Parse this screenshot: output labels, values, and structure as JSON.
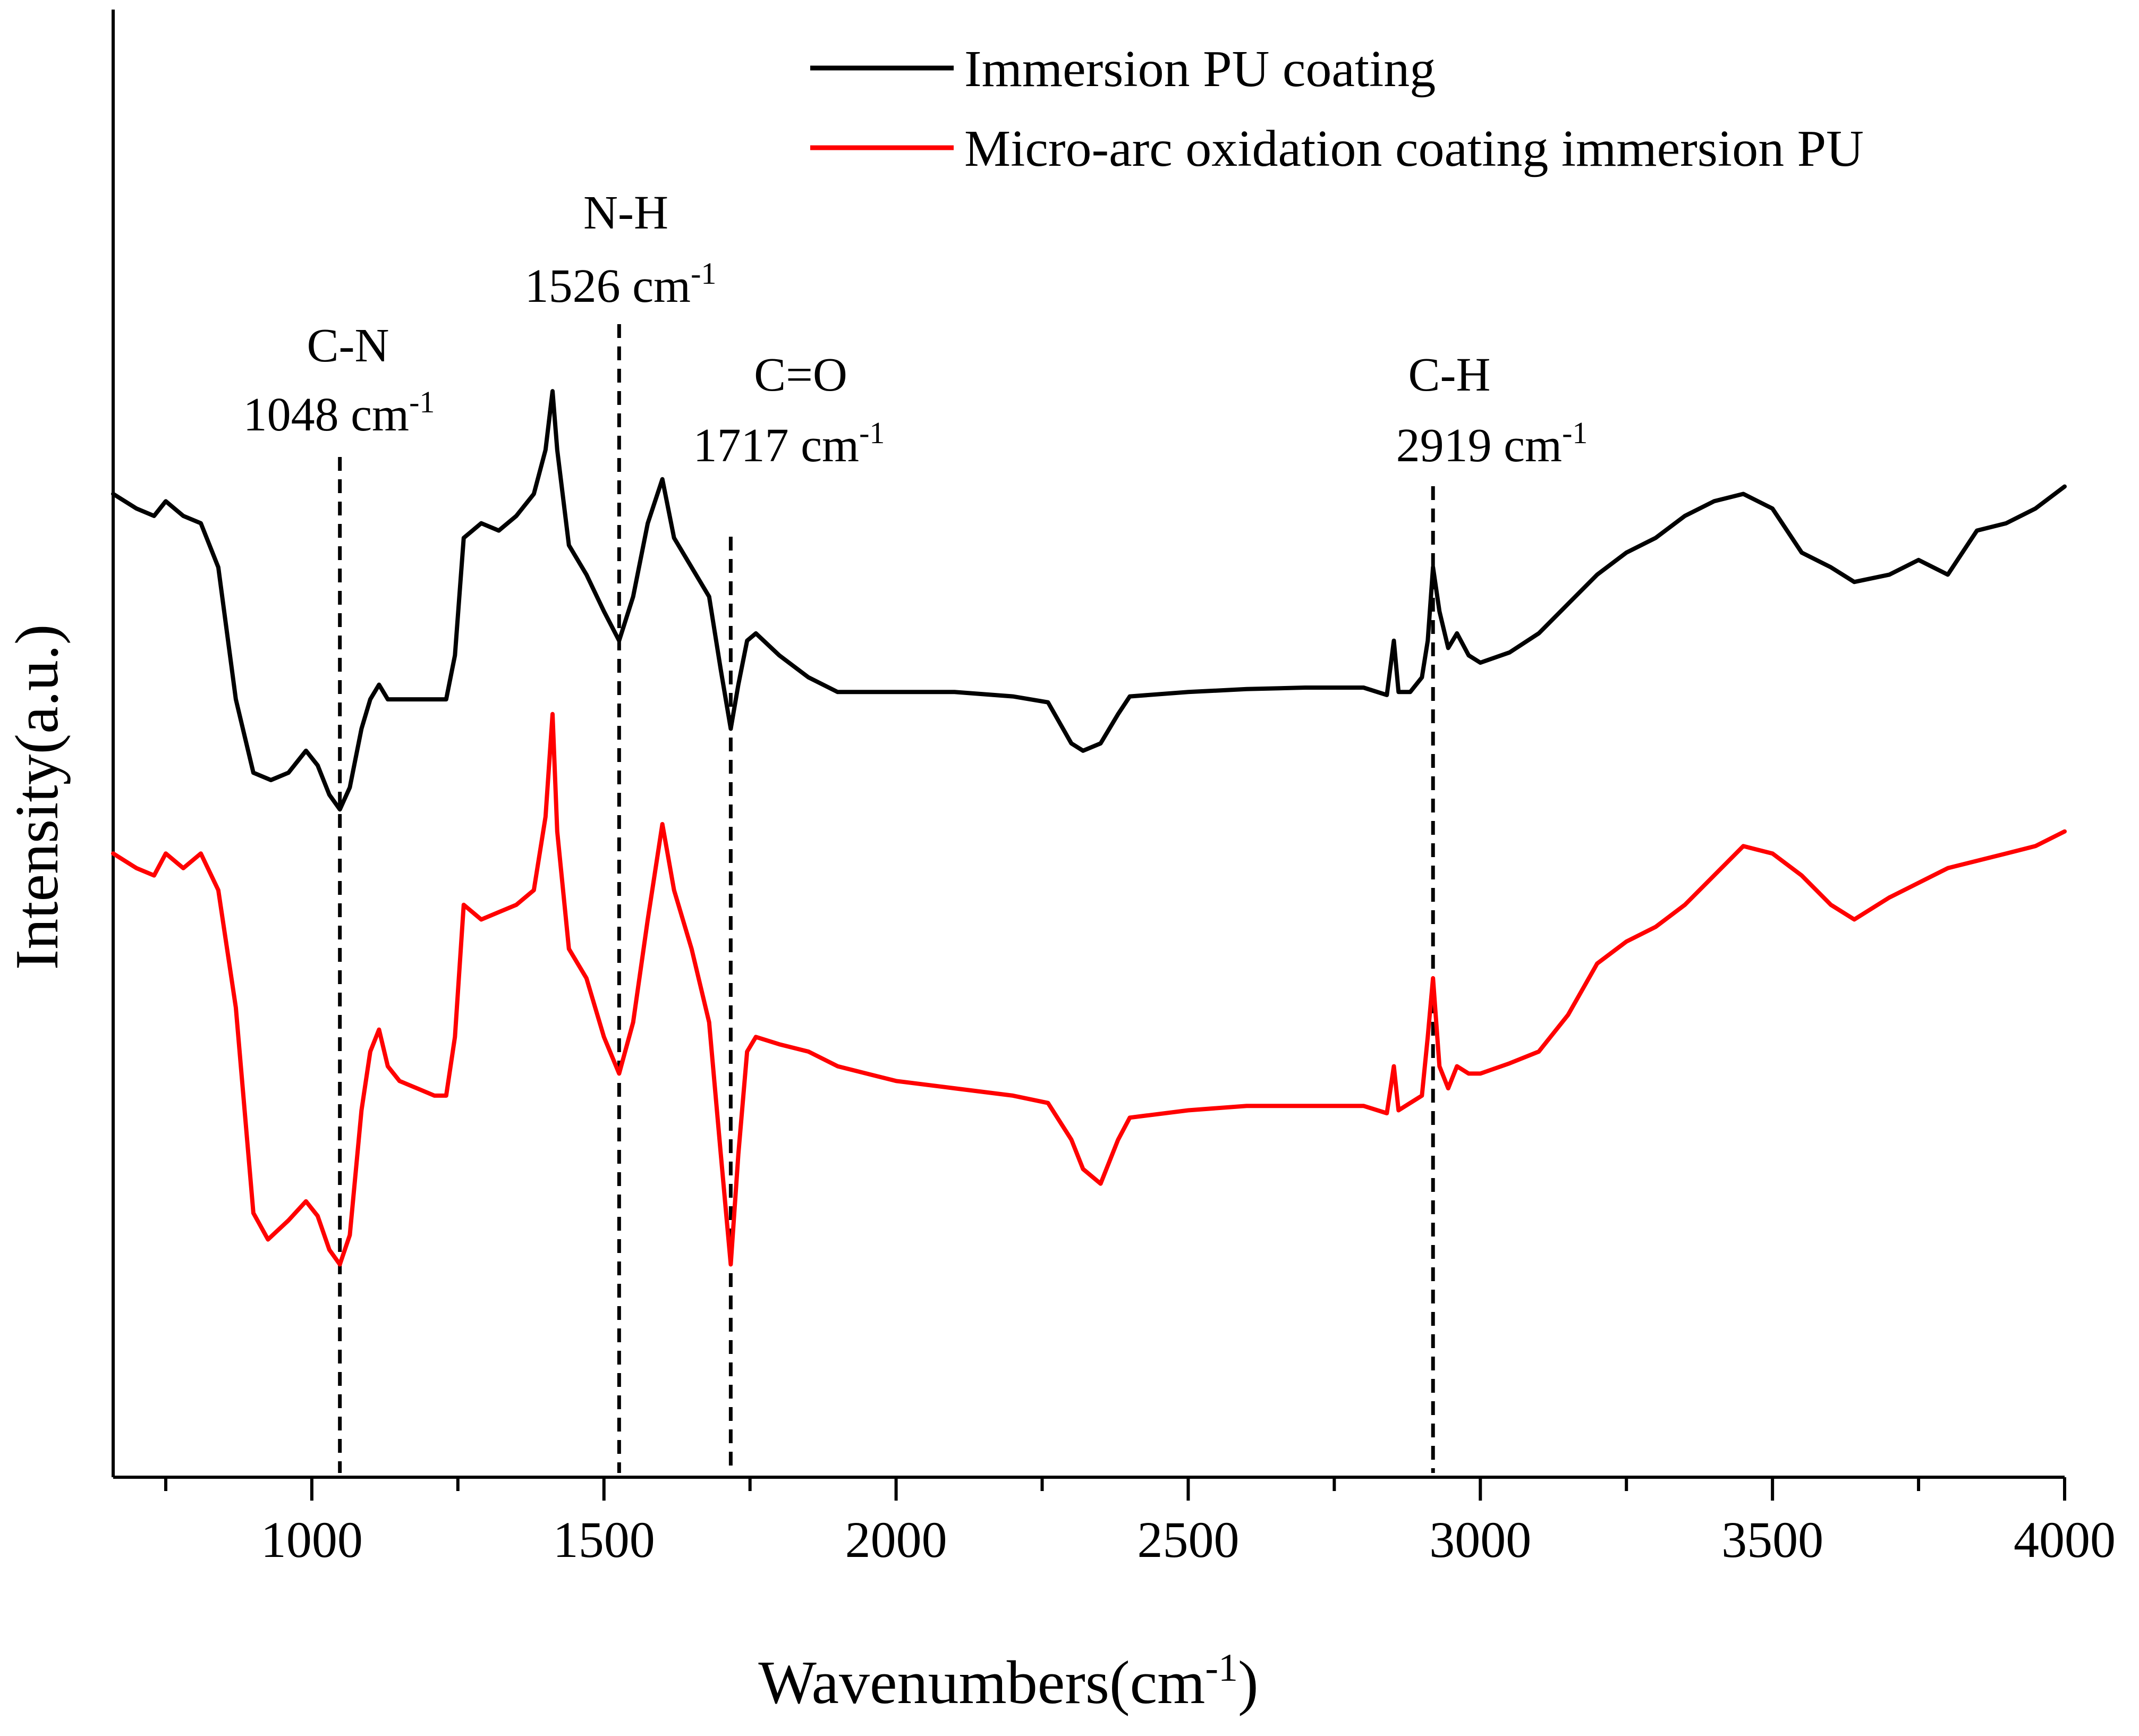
{
  "chart_data": {
    "type": "line",
    "title": "",
    "xlabel": "Wavenumbers(cm",
    "xlabel_sup": "-1",
    "xlabel_tail": ")",
    "ylabel": "Intensity(a.u.)",
    "xlim": [
      660,
      4000
    ],
    "ylim": [
      0,
      100
    ],
    "grid": false,
    "legend_position": "top-right",
    "x_ticks": [
      1000,
      1500,
      2000,
      2500,
      3000,
      3500,
      4000
    ],
    "x_tick_labels": [
      "1000",
      "1500",
      "2000",
      "2500",
      "3000",
      "3500",
      "4000"
    ],
    "series": [
      {
        "name": "Immersion PU coating",
        "color": "#000000",
        "points": [
          [
            660,
            67
          ],
          [
            700,
            66
          ],
          [
            730,
            65.5
          ],
          [
            750,
            66.5
          ],
          [
            780,
            65.5
          ],
          [
            810,
            65
          ],
          [
            840,
            62
          ],
          [
            870,
            53
          ],
          [
            900,
            48
          ],
          [
            930,
            47.5
          ],
          [
            960,
            48
          ],
          [
            990,
            49.5
          ],
          [
            1010,
            48.5
          ],
          [
            1030,
            46.5
          ],
          [
            1048,
            45.5
          ],
          [
            1065,
            47
          ],
          [
            1085,
            51
          ],
          [
            1100,
            53
          ],
          [
            1115,
            54
          ],
          [
            1130,
            53
          ],
          [
            1150,
            53
          ],
          [
            1180,
            53
          ],
          [
            1210,
            53
          ],
          [
            1230,
            53
          ],
          [
            1245,
            56
          ],
          [
            1260,
            64
          ],
          [
            1290,
            65
          ],
          [
            1320,
            64.5
          ],
          [
            1350,
            65.5
          ],
          [
            1380,
            67
          ],
          [
            1400,
            70
          ],
          [
            1412,
            74
          ],
          [
            1420,
            70
          ],
          [
            1440,
            63.5
          ],
          [
            1470,
            61.5
          ],
          [
            1500,
            59
          ],
          [
            1526,
            57
          ],
          [
            1550,
            60
          ],
          [
            1575,
            65
          ],
          [
            1600,
            68
          ],
          [
            1620,
            64
          ],
          [
            1650,
            62
          ],
          [
            1680,
            60
          ],
          [
            1700,
            55
          ],
          [
            1717,
            51
          ],
          [
            1730,
            54
          ],
          [
            1745,
            57
          ],
          [
            1760,
            57.5
          ],
          [
            1800,
            56
          ],
          [
            1850,
            54.5
          ],
          [
            1900,
            53.5
          ],
          [
            2000,
            53.5
          ],
          [
            2100,
            53.5
          ],
          [
            2200,
            53.2
          ],
          [
            2260,
            52.8
          ],
          [
            2300,
            50
          ],
          [
            2320,
            49.5
          ],
          [
            2350,
            50
          ],
          [
            2380,
            52
          ],
          [
            2400,
            53.2
          ],
          [
            2500,
            53.5
          ],
          [
            2600,
            53.7
          ],
          [
            2700,
            53.8
          ],
          [
            2800,
            53.8
          ],
          [
            2840,
            53.3
          ],
          [
            2852,
            57
          ],
          [
            2860,
            53.5
          ],
          [
            2880,
            53.5
          ],
          [
            2900,
            54.5
          ],
          [
            2910,
            57
          ],
          [
            2919,
            62
          ],
          [
            2930,
            59
          ],
          [
            2945,
            56.5
          ],
          [
            2960,
            57.5
          ],
          [
            2980,
            56
          ],
          [
            3000,
            55.5
          ],
          [
            3050,
            56.2
          ],
          [
            3100,
            57.5
          ],
          [
            3150,
            59.5
          ],
          [
            3200,
            61.5
          ],
          [
            3250,
            63
          ],
          [
            3300,
            64
          ],
          [
            3350,
            65.5
          ],
          [
            3400,
            66.5
          ],
          [
            3450,
            67
          ],
          [
            3500,
            66
          ],
          [
            3550,
            63
          ],
          [
            3600,
            62
          ],
          [
            3640,
            61
          ],
          [
            3700,
            61.5
          ],
          [
            3750,
            62.5
          ],
          [
            3800,
            61.5
          ],
          [
            3850,
            64.5
          ],
          [
            3900,
            65
          ],
          [
            3950,
            66
          ],
          [
            4000,
            67.5
          ]
        ]
      },
      {
        "name": "Micro-arc oxidation coating immersion PU",
        "color": "#ff0000",
        "points": [
          [
            660,
            42.5
          ],
          [
            700,
            41.5
          ],
          [
            730,
            41
          ],
          [
            750,
            42.5
          ],
          [
            780,
            41.5
          ],
          [
            810,
            42.5
          ],
          [
            840,
            40
          ],
          [
            870,
            32
          ],
          [
            900,
            18
          ],
          [
            925,
            16.2
          ],
          [
            960,
            17.5
          ],
          [
            990,
            18.8
          ],
          [
            1010,
            17.8
          ],
          [
            1030,
            15.5
          ],
          [
            1048,
            14.5
          ],
          [
            1065,
            16.5
          ],
          [
            1085,
            25
          ],
          [
            1100,
            29
          ],
          [
            1115,
            30.5
          ],
          [
            1130,
            28
          ],
          [
            1150,
            27
          ],
          [
            1180,
            26.5
          ],
          [
            1210,
            26
          ],
          [
            1230,
            26
          ],
          [
            1245,
            30
          ],
          [
            1260,
            39
          ],
          [
            1290,
            38
          ],
          [
            1320,
            38.5
          ],
          [
            1350,
            39
          ],
          [
            1380,
            40
          ],
          [
            1400,
            45
          ],
          [
            1412,
            52
          ],
          [
            1420,
            44
          ],
          [
            1440,
            36
          ],
          [
            1470,
            34
          ],
          [
            1500,
            30
          ],
          [
            1526,
            27.5
          ],
          [
            1550,
            31
          ],
          [
            1575,
            38
          ],
          [
            1600,
            44.5
          ],
          [
            1620,
            40
          ],
          [
            1650,
            36
          ],
          [
            1680,
            31
          ],
          [
            1700,
            22
          ],
          [
            1717,
            14.5
          ],
          [
            1730,
            22
          ],
          [
            1745,
            29
          ],
          [
            1760,
            30
          ],
          [
            1800,
            29.5
          ],
          [
            1850,
            29
          ],
          [
            1900,
            28
          ],
          [
            2000,
            27
          ],
          [
            2100,
            26.5
          ],
          [
            2200,
            26
          ],
          [
            2260,
            25.5
          ],
          [
            2300,
            23
          ],
          [
            2320,
            21
          ],
          [
            2350,
            20
          ],
          [
            2380,
            23
          ],
          [
            2400,
            24.5
          ],
          [
            2500,
            25
          ],
          [
            2600,
            25.3
          ],
          [
            2700,
            25.3
          ],
          [
            2800,
            25.3
          ],
          [
            2840,
            24.8
          ],
          [
            2852,
            28
          ],
          [
            2860,
            25
          ],
          [
            2880,
            25.5
          ],
          [
            2900,
            26
          ],
          [
            2910,
            30
          ],
          [
            2919,
            34
          ],
          [
            2930,
            28
          ],
          [
            2945,
            26.5
          ],
          [
            2960,
            28
          ],
          [
            2980,
            27.5
          ],
          [
            3000,
            27.5
          ],
          [
            3050,
            28.2
          ],
          [
            3100,
            29
          ],
          [
            3150,
            31.5
          ],
          [
            3200,
            35
          ],
          [
            3250,
            36.5
          ],
          [
            3300,
            37.5
          ],
          [
            3350,
            39
          ],
          [
            3400,
            41
          ],
          [
            3450,
            43
          ],
          [
            3500,
            42.5
          ],
          [
            3550,
            41
          ],
          [
            3600,
            39
          ],
          [
            3640,
            38
          ],
          [
            3700,
            39.5
          ],
          [
            3750,
            40.5
          ],
          [
            3800,
            41.5
          ],
          [
            3850,
            42
          ],
          [
            3900,
            42.5
          ],
          [
            3950,
            43
          ],
          [
            4000,
            44
          ]
        ]
      }
    ],
    "annotations": [
      {
        "label": "C-N",
        "value_text": "1048 cm",
        "unit_sup": "-1",
        "x": 1048
      },
      {
        "label": "N-H",
        "value_text": "1526 cm",
        "unit_sup": "-1",
        "x": 1526
      },
      {
        "label": "C=O",
        "value_text": "1717 cm",
        "unit_sup": "-1",
        "x": 1717
      },
      {
        "label": "C-H",
        "value_text": "2919 cm",
        "unit_sup": "-1",
        "x": 2919
      }
    ]
  }
}
